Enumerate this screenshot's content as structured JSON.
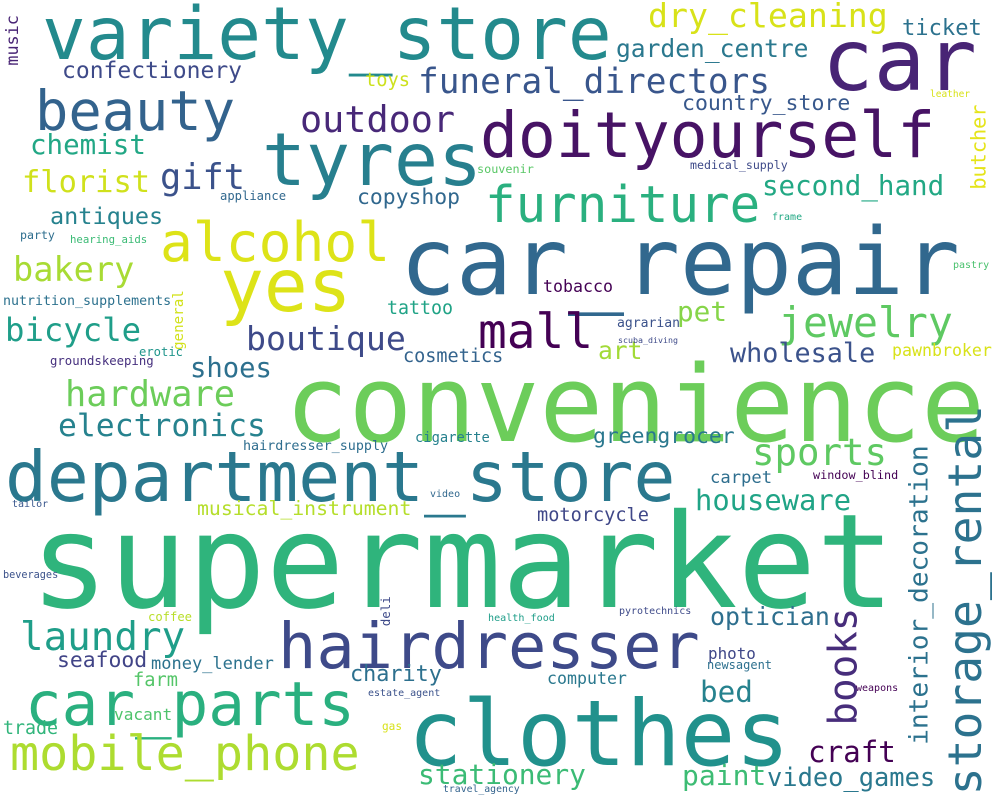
{
  "words": [
    {
      "text": "supermarket",
      "color": "#2fb47c"
    },
    {
      "text": "convenience",
      "color": "#6ccd5a"
    },
    {
      "text": "car_repair",
      "color": "#31688e"
    },
    {
      "text": "department_store",
      "color": "#2a788e"
    },
    {
      "text": "clothes",
      "color": "#21918c"
    },
    {
      "text": "variety_store",
      "color": "#238a8d"
    },
    {
      "text": "car",
      "color": "#482475"
    },
    {
      "text": "doityourself",
      "color": "#471365"
    },
    {
      "text": "tyres",
      "color": "#277f8e"
    },
    {
      "text": "yes",
      "color": "#dde318"
    },
    {
      "text": "hairdresser",
      "color": "#3e4a89"
    },
    {
      "text": "car_parts",
      "color": "#2ab07f"
    },
    {
      "text": "mobile_phone",
      "color": "#addc30"
    },
    {
      "text": "storage_rental",
      "color": "#2c728e"
    },
    {
      "text": "beauty",
      "color": "#33638d"
    },
    {
      "text": "alcohol",
      "color": "#dde318"
    },
    {
      "text": "furniture",
      "color": "#2ab07f"
    },
    {
      "text": "mall",
      "color": "#440154"
    },
    {
      "text": "jewelry",
      "color": "#5ec962"
    },
    {
      "text": "gift",
      "color": "#3b528b"
    },
    {
      "text": "laundry",
      "color": "#1f9e89"
    },
    {
      "text": "hardware",
      "color": "#6ccd5a"
    },
    {
      "text": "sports",
      "color": "#5ec962"
    },
    {
      "text": "books",
      "color": "#472d7b"
    },
    {
      "text": "funeral_directors",
      "color": "#39568c"
    },
    {
      "text": "outdoor",
      "color": "#482878"
    },
    {
      "text": "electronics",
      "color": "#26828e"
    },
    {
      "text": "bicycle",
      "color": "#1f9e89"
    },
    {
      "text": "bakery",
      "color": "#a8db34"
    },
    {
      "text": "dry_cleaning",
      "color": "#d8e219"
    },
    {
      "text": "craft",
      "color": "#440154"
    },
    {
      "text": "interior_decoration",
      "color": "#2c728e"
    },
    {
      "text": "boutique",
      "color": "#3e4a89"
    },
    {
      "text": "florist",
      "color": "#d0e11c"
    },
    {
      "text": "chemist",
      "color": "#22a785"
    },
    {
      "text": "houseware",
      "color": "#20a486"
    },
    {
      "text": "stationery",
      "color": "#3bbb75"
    },
    {
      "text": "second_hand",
      "color": "#22a884"
    },
    {
      "text": "garden_centre",
      "color": "#2a788e"
    },
    {
      "text": "optician",
      "color": "#2e6f8e"
    },
    {
      "text": "bed",
      "color": "#26828e"
    },
    {
      "text": "shoes",
      "color": "#2d708e"
    },
    {
      "text": "wholesale",
      "color": "#3b528b"
    },
    {
      "text": "video_games",
      "color": "#2a788e"
    },
    {
      "text": "paint",
      "color": "#3dbc74"
    },
    {
      "text": "pet",
      "color": "#86d549"
    },
    {
      "text": "antiques",
      "color": "#26828e"
    },
    {
      "text": "confectionery",
      "color": "#3e4a89"
    },
    {
      "text": "charity",
      "color": "#2d708e"
    },
    {
      "text": "greengrocer",
      "color": "#2a788e"
    },
    {
      "text": "seafood",
      "color": "#414487"
    },
    {
      "text": "copyshop",
      "color": "#31688e"
    },
    {
      "text": "ticket",
      "color": "#2c728e"
    },
    {
      "text": "country_store",
      "color": "#38588c"
    },
    {
      "text": "art",
      "color": "#a2da37"
    },
    {
      "text": "musical_instrument",
      "color": "#b5de2b"
    },
    {
      "text": "motorcycle",
      "color": "#3f4788"
    },
    {
      "text": "money_lender",
      "color": "#2c728e"
    },
    {
      "text": "tattoo",
      "color": "#20a386"
    },
    {
      "text": "cosmetics",
      "color": "#33638d"
    },
    {
      "text": "tobacco",
      "color": "#440154"
    },
    {
      "text": "pawnbroker",
      "color": "#d8e219"
    },
    {
      "text": "computer",
      "color": "#2a788e"
    },
    {
      "text": "carpet",
      "color": "#2e6e8e"
    },
    {
      "text": "photo",
      "color": "#3f4788"
    },
    {
      "text": "trade",
      "color": "#31b57b"
    },
    {
      "text": "vacant",
      "color": "#4ec36b"
    },
    {
      "text": "toys",
      "color": "#cde11d"
    },
    {
      "text": "butcher",
      "color": "#e5e419"
    },
    {
      "text": "farm",
      "color": "#54c568"
    },
    {
      "text": "cigarette",
      "color": "#26818e"
    },
    {
      "text": "hairdresser_supply",
      "color": "#2e6d8e"
    },
    {
      "text": "nutrition_supplements",
      "color": "#2c718e"
    },
    {
      "text": "general",
      "color": "#d2e21b"
    },
    {
      "text": "music",
      "color": "#482475"
    },
    {
      "text": "newsagent",
      "color": "#2d708e"
    },
    {
      "text": "erotic",
      "color": "#1f958b"
    },
    {
      "text": "agrarian",
      "color": "#3b528b"
    },
    {
      "text": "appliance",
      "color": "#31688e"
    },
    {
      "text": "souvenir",
      "color": "#58c765"
    },
    {
      "text": "window_blind",
      "color": "#440154"
    },
    {
      "text": "medical_supply",
      "color": "#3e4a89"
    },
    {
      "text": "hearing_aids",
      "color": "#3bbb75"
    },
    {
      "text": "party",
      "color": "#2e6e8e"
    },
    {
      "text": "groundskeeping",
      "color": "#46307e"
    },
    {
      "text": "leather",
      "color": "#d8e219"
    },
    {
      "text": "frame",
      "color": "#22a884"
    },
    {
      "text": "pastry",
      "color": "#4ac16d"
    },
    {
      "text": "scuba_diving",
      "color": "#3e4a89"
    },
    {
      "text": "video",
      "color": "#31688e"
    },
    {
      "text": "tailor",
      "color": "#39568c"
    },
    {
      "text": "beverages",
      "color": "#3b528b"
    },
    {
      "text": "coffee",
      "color": "#b8de29"
    },
    {
      "text": "deli",
      "color": "#3e4a89"
    },
    {
      "text": "health_food",
      "color": "#1f9e89"
    },
    {
      "text": "pyrotechnics",
      "color": "#3e4a89"
    },
    {
      "text": "estate_agent",
      "color": "#3b528b"
    },
    {
      "text": "weapons",
      "color": "#440154"
    },
    {
      "text": "gas",
      "color": "#d8e219"
    },
    {
      "text": "travel_agency",
      "color": "#33638d"
    }
  ]
}
